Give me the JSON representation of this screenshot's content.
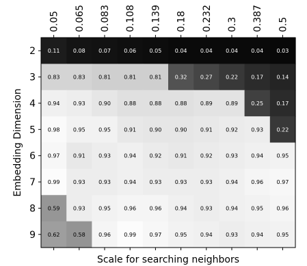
{
  "chart_data": {
    "type": "heatmap",
    "xlabel": "Scale for searching neighbors",
    "ylabel": "Embedding Dimension",
    "x_categories": [
      "0.05",
      "0.065",
      "0.083",
      "0.108",
      "0.139",
      "0.18",
      "0.232",
      "0.3",
      "0.387",
      "0.5"
    ],
    "y_categories": [
      "2",
      "3",
      "4",
      "5",
      "6",
      "7",
      "8",
      "9"
    ],
    "x_axis_position": "top",
    "colormap": "greys",
    "value_range": [
      0,
      1
    ],
    "values": [
      [
        "0.11",
        "0.08",
        "0.07",
        "0.06",
        "0.05",
        "0.04",
        "0.04",
        "0.04",
        "0.04",
        "0.03"
      ],
      [
        "0.83",
        "0.83",
        "0.81",
        "0.81",
        "0.81",
        "0.32",
        "0.27",
        "0.22",
        "0.17",
        "0.14"
      ],
      [
        "0.94",
        "0.93",
        "0.90",
        "0.88",
        "0.88",
        "0.88",
        "0.89",
        "0.89",
        "0.25",
        "0.17"
      ],
      [
        "0.98",
        "0.95",
        "0.95",
        "0.91",
        "0.90",
        "0.90",
        "0.91",
        "0.92",
        "0.93",
        "0.22"
      ],
      [
        "0.97",
        "0.91",
        "0.93",
        "0.94",
        "0.92",
        "0.91",
        "0.92",
        "0.93",
        "0.94",
        "0.95"
      ],
      [
        "0.99",
        "0.93",
        "0.93",
        "0.94",
        "0.93",
        "0.93",
        "0.93",
        "0.94",
        "0.96",
        "0.97"
      ],
      [
        "0.59",
        "0.93",
        "0.95",
        "0.96",
        "0.96",
        "0.94",
        "0.93",
        "0.94",
        "0.95",
        "0.96"
      ],
      [
        "0.62",
        "0.58",
        "0.96",
        "0.99",
        "0.97",
        "0.95",
        "0.94",
        "0.93",
        "0.94",
        "0.95"
      ]
    ]
  }
}
